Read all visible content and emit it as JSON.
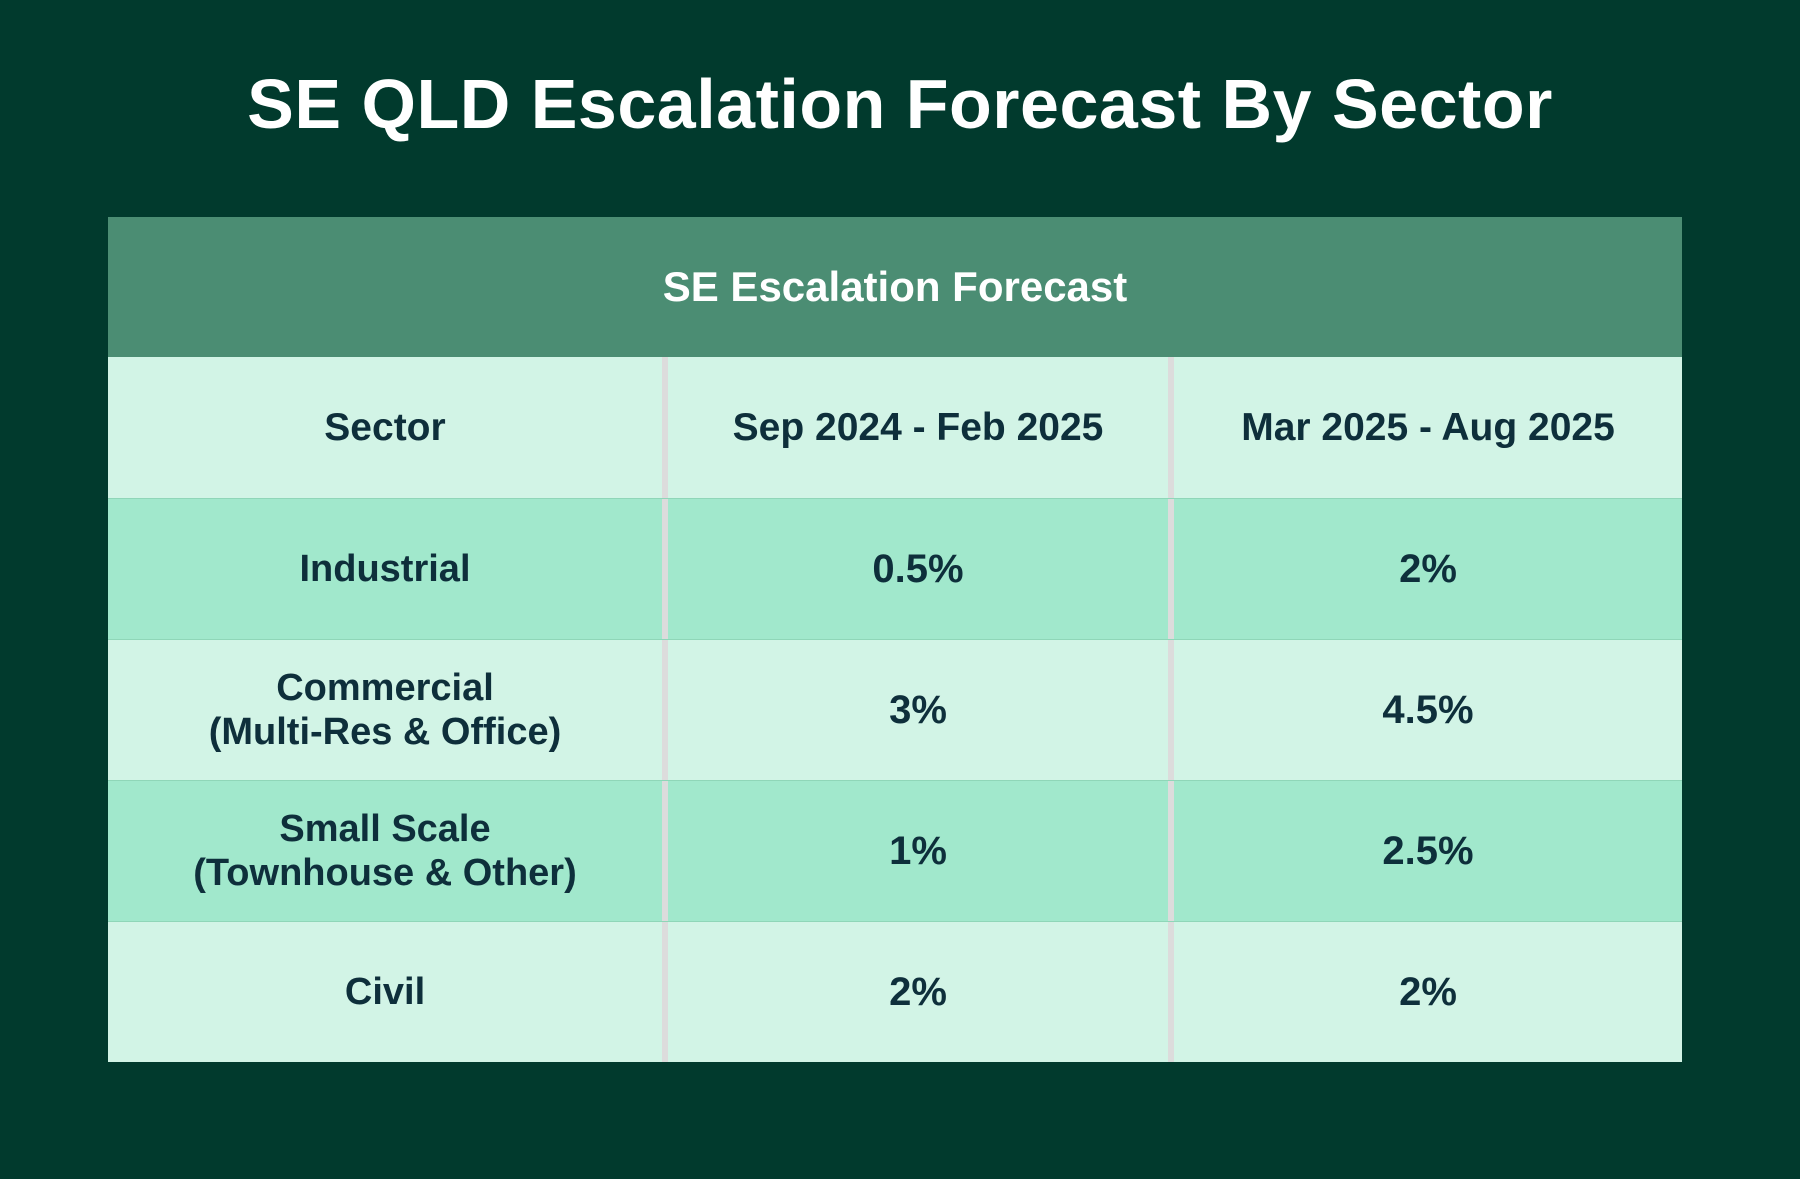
{
  "title": "SE QLD Escalation Forecast By Sector",
  "chart_data": {
    "type": "table",
    "title": "SE QLD Escalation Forecast By Sector",
    "table_title": "SE Escalation Forecast",
    "columns": [
      "Sector",
      "Sep 2024 - Feb 2025",
      "Mar 2025 - Aug 2025"
    ],
    "rows": [
      {
        "sector": [
          "Industrial"
        ],
        "values": [
          "0.5%",
          "2%"
        ]
      },
      {
        "sector": [
          "Commercial",
          "(Multi-Res & Office)"
        ],
        "values": [
          "3%",
          "4.5%"
        ]
      },
      {
        "sector": [
          "Small Scale",
          "(Townhouse & Other)"
        ],
        "values": [
          "1%",
          "2.5%"
        ]
      },
      {
        "sector": [
          "Civil"
        ],
        "values": [
          "2%",
          "2%"
        ]
      }
    ]
  },
  "colors": {
    "background": "#013a2d",
    "banner": "#4b8d73",
    "row_light": "#d2f4e6",
    "row_dark": "#a1e8cc",
    "text_dark": "#0e2f3b",
    "divider": "#dcdcdc"
  }
}
